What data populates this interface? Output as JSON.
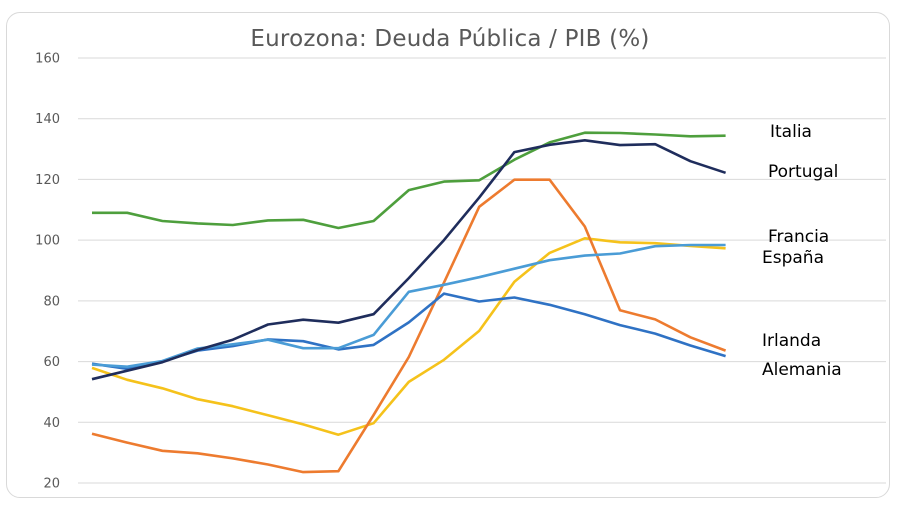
{
  "chart_data": {
    "type": "line",
    "title": "Eurozona: Deuda Pública / PIB (%)",
    "xlabel": "",
    "ylabel": "",
    "ylim": [
      20,
      160
    ],
    "yticks": [
      20,
      40,
      60,
      80,
      100,
      120,
      140,
      160
    ],
    "grid": true,
    "x": [
      1,
      2,
      3,
      4,
      5,
      6,
      7,
      8,
      9,
      10,
      11,
      12,
      13,
      14,
      15,
      16,
      17,
      18,
      19,
      20
    ],
    "series": [
      {
        "name": "Italia",
        "color": "#4e9f3d",
        "values": [
          109,
          109,
          106.3,
          105.5,
          105,
          106.5,
          106.7,
          104,
          106.3,
          116.5,
          119.3,
          119.7,
          126.5,
          132.2,
          135.4,
          135.3,
          134.8,
          134.2,
          134.4,
          null
        ]
      },
      {
        "name": "Portugal",
        "color": "#1f2d5c",
        "values": [
          54.2,
          57,
          59.8,
          63.8,
          67.2,
          72.2,
          73.8,
          72.8,
          75.6,
          87.5,
          100,
          114,
          129,
          131.4,
          132.9,
          131.3,
          131.6,
          126,
          122.2,
          null
        ]
      },
      {
        "name": "Francia",
        "color": "#4a9cd6",
        "values": [
          59,
          58.3,
          60.2,
          64.3,
          65.7,
          67.2,
          64.4,
          64.4,
          68.8,
          83,
          85.3,
          87.8,
          90.6,
          93.4,
          94.9,
          95.6,
          98,
          98.4,
          98.4,
          null
        ]
      },
      {
        "name": "España",
        "color": "#f5c21b",
        "values": [
          57.9,
          54,
          51.2,
          47.6,
          45.3,
          42.3,
          39.3,
          35.9,
          39.7,
          53.3,
          60.6,
          70.1,
          86.3,
          95.8,
          100.6,
          99.3,
          99,
          98.1,
          97.3,
          null
        ]
      },
      {
        "name": "Irlanda",
        "color": "#ed7b2f",
        "values": [
          36.2,
          33.3,
          30.6,
          29.8,
          28.1,
          26.1,
          23.6,
          23.9,
          42.4,
          61.5,
          86,
          111,
          119.9,
          119.9,
          104.5,
          76.9,
          73.9,
          68,
          63.6,
          null
        ]
      },
      {
        "name": "Alemania",
        "color": "#2f72c4",
        "values": [
          59.3,
          57.6,
          60.1,
          63.6,
          65.1,
          67.3,
          66.7,
          64,
          65.5,
          72.9,
          82.4,
          79.8,
          81.1,
          78.7,
          75.6,
          72,
          69.2,
          65.3,
          61.8,
          null
        ]
      }
    ]
  }
}
